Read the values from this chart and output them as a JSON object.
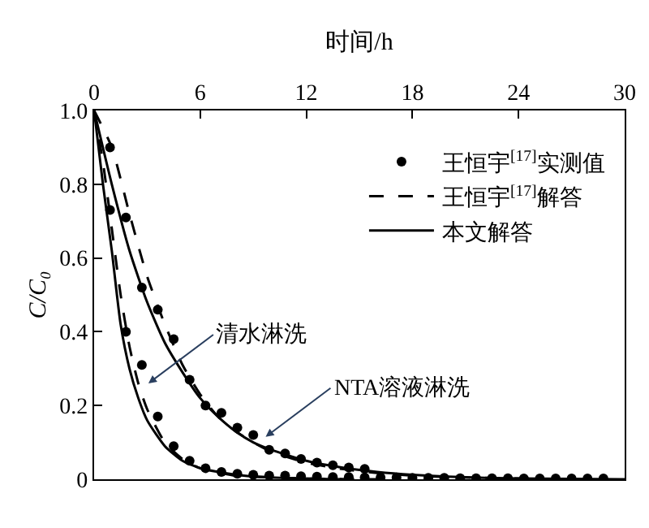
{
  "chart_data": {
    "type": "line",
    "xlabel": "时间/h",
    "ylabel": "C/C₀",
    "xlim": [
      0,
      30
    ],
    "xticks": [
      0,
      6,
      12,
      18,
      24,
      30
    ],
    "ylim": [
      0,
      1.0
    ],
    "yticks": [
      0,
      0.2,
      0.4,
      0.6,
      0.8,
      {
        "value": 1.0,
        "label": "1.0"
      }
    ],
    "legend": "top right",
    "tick_labels": "xy",
    "series": [
      {
        "name": "王恒宇$^{[17]}$实测值",
        "type": "scatter",
        "marker": "circle",
        "color": "#000000",
        "x": [
          0.9,
          1.8,
          2.7,
          3.6,
          4.5,
          5.4,
          6.3,
          7.2,
          8.1,
          9.0,
          9.9,
          10.8,
          11.7,
          12.6,
          13.5,
          14.4,
          15.3
        ],
        "values": [
          0.9,
          0.71,
          0.52,
          0.46,
          0.38,
          0.27,
          0.2,
          0.18,
          0.14,
          0.12,
          0.08,
          0.07,
          0.055,
          0.045,
          0.038,
          0.032,
          0.028
        ]
      },
      {
        "type": "scatter",
        "marker": "circle",
        "color": "#000000",
        "x": [
          0.9,
          1.8,
          2.7,
          3.6,
          4.5,
          5.4,
          6.3,
          7.2,
          8.1,
          9.0,
          9.9,
          10.8,
          11.7,
          12.6,
          13.5,
          14.4,
          15.3,
          16.2,
          17.1,
          18.0,
          18.9,
          19.8,
          20.7,
          21.6,
          22.5,
          23.4,
          24.3,
          25.2,
          26.1,
          27.0,
          27.9,
          28.8
        ],
        "values": [
          0.73,
          0.4,
          0.31,
          0.17,
          0.09,
          0.05,
          0.03,
          0.02,
          0.015,
          0.012,
          0.01,
          0.01,
          0.008,
          0.007,
          0.006,
          0.006,
          0.005,
          0.005,
          0.005,
          0.004,
          0.004,
          0.004,
          0.003,
          0.003,
          0.003,
          0.003,
          0.002,
          0.002,
          0.002,
          0.002,
          0.002,
          0.002
        ]
      },
      {
        "name": "王恒宇$^{[17]}$解答",
        "line_style": "dashed",
        "color": "#000000",
        "x": [
          0,
          1,
          2,
          3,
          4,
          5,
          6,
          7,
          8,
          9,
          10,
          12,
          14,
          16,
          18,
          20,
          24,
          28
        ],
        "values": [
          1,
          0.9,
          0.72,
          0.55,
          0.42,
          0.31,
          0.23,
          0.17,
          0.13,
          0.1,
          0.075,
          0.045,
          0.028,
          0.017,
          0.01,
          0.006,
          0.002,
          0
        ]
      },
      {
        "line_style": "dashed",
        "color": "#000000",
        "x": [
          0,
          0.5,
          1,
          1.5,
          2,
          2.5,
          3,
          4,
          5,
          6,
          8,
          12,
          16
        ],
        "values": [
          1,
          0.86,
          0.68,
          0.5,
          0.36,
          0.26,
          0.19,
          0.1,
          0.055,
          0.03,
          0.01,
          0.002,
          0
        ]
      },
      {
        "name": "本文解答",
        "line_style": "solid",
        "color": "#000000",
        "x": [
          0,
          1,
          2,
          3,
          4,
          5,
          6,
          7,
          8,
          9,
          10,
          12,
          14,
          16,
          18,
          20,
          24,
          30
        ],
        "values": [
          1,
          0.8,
          0.62,
          0.48,
          0.37,
          0.29,
          0.22,
          0.17,
          0.13,
          0.1,
          0.08,
          0.05,
          0.032,
          0.02,
          0.012,
          0.007,
          0.002,
          0
        ]
      },
      {
        "line_style": "solid",
        "color": "#000000",
        "x": [
          0,
          0.5,
          1,
          1.5,
          2,
          2.5,
          3,
          4,
          5,
          6,
          8,
          10,
          14
        ],
        "values": [
          1,
          0.8,
          0.62,
          0.42,
          0.3,
          0.22,
          0.16,
          0.09,
          0.05,
          0.03,
          0.012,
          0.005,
          0
        ]
      }
    ],
    "annotations": [
      {
        "text": "清水淋洗",
        "x": 3.07,
        "y": 0.26
      },
      {
        "text": "NTA溶液淋洗",
        "x": 9.7,
        "y": 0.115
      }
    ]
  }
}
